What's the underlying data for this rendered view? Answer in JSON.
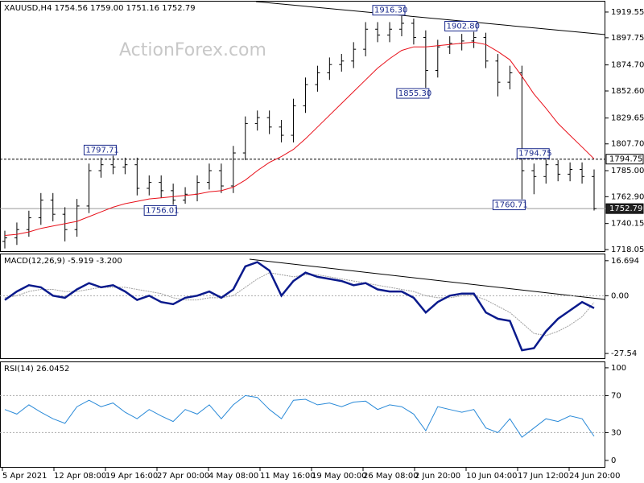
{
  "chart_data": {
    "type": "ohlc",
    "title": "XAUUSD,H4  1754.56 1759.00 1751.16 1752.79",
    "watermark": "ActionForex.com",
    "x_labels": [
      "5 Apr 2021",
      "12 Apr 08:00",
      "19 Apr 16:00",
      "27 Apr 00:00",
      "4 May 08:00",
      "11 May 16:00",
      "19 May 00:00",
      "26 May 08:00",
      "2 Jun 20:00",
      "10 Jun 04:00",
      "17 Jun 12:00",
      "24 Jun 20:00"
    ],
    "open": [
      1725,
      1728,
      1735,
      1745,
      1760,
      1748,
      1735,
      1755,
      1785,
      1790,
      1788,
      1790,
      1770,
      1775,
      1768,
      1760,
      1765,
      1775,
      1785,
      1772,
      1800,
      1825,
      1830,
      1822,
      1815,
      1840,
      1858,
      1868,
      1875,
      1878,
      1888,
      1905,
      1900,
      1905,
      1910,
      1898,
      1870,
      1890,
      1893,
      1895,
      1898,
      1878,
      1860,
      1868,
      1785,
      1780,
      1790,
      1782,
      1786,
      1780
    ],
    "high": [
      1734,
      1741,
      1751,
      1766,
      1766,
      1754,
      1761,
      1791,
      1796,
      1797.71,
      1796,
      1796,
      1781,
      1781,
      1774,
      1771,
      1781,
      1791,
      1791,
      1806,
      1831,
      1836,
      1836,
      1828,
      1846,
      1864,
      1874,
      1881,
      1884,
      1894,
      1911,
      1911,
      1911,
      1916.3,
      1914,
      1904,
      1896,
      1899,
      1901,
      1902.8,
      1902,
      1884,
      1874,
      1874,
      1791,
      1794.75,
      1794,
      1792,
      1792,
      1786
    ],
    "low": [
      1719,
      1722,
      1729,
      1739,
      1742,
      1725,
      1729,
      1749,
      1779,
      1782,
      1782,
      1764,
      1764,
      1762,
      1756.01,
      1757,
      1759,
      1769,
      1766,
      1766,
      1794,
      1819,
      1816,
      1809,
      1809,
      1834,
      1852,
      1862,
      1869,
      1872,
      1882,
      1894,
      1894,
      1899,
      1892,
      1855.3,
      1864,
      1884,
      1887,
      1889,
      1872,
      1848,
      1854,
      1760.71,
      1765,
      1774,
      1776,
      1776,
      1774,
      1751.16
    ],
    "close": [
      1728,
      1735,
      1745,
      1760,
      1748,
      1735,
      1755,
      1785,
      1790,
      1788,
      1790,
      1770,
      1775,
      1768,
      1760,
      1765,
      1775,
      1785,
      1772,
      1800,
      1825,
      1830,
      1822,
      1815,
      1840,
      1858,
      1868,
      1875,
      1878,
      1888,
      1905,
      1900,
      1905,
      1910,
      1898,
      1870,
      1890,
      1893,
      1895,
      1898,
      1878,
      1860,
      1868,
      1785,
      1780,
      1790,
      1782,
      1786,
      1780,
      1752.79
    ],
    "ma": {
      "color": "#e8101a",
      "values": [
        1730,
        1731,
        1733,
        1736,
        1738,
        1740,
        1742,
        1746,
        1750,
        1754,
        1757,
        1759,
        1761,
        1762,
        1763,
        1764,
        1765,
        1767,
        1768,
        1771,
        1777,
        1785,
        1792,
        1797,
        1803,
        1812,
        1822,
        1832,
        1842,
        1852,
        1862,
        1872,
        1880,
        1887,
        1890,
        1890,
        1891,
        1892,
        1893,
        1894,
        1892,
        1886,
        1879,
        1865,
        1850,
        1838,
        1825,
        1815,
        1805,
        1795
      ]
    },
    "ylim": [
      1716.7,
      1928.4
    ],
    "yticks": [
      1919.55,
      1897.75,
      {
        "value": 1874.7,
        "label": "1874.70"
      },
      {
        "value": 1852.6,
        "label": "1852.60"
      },
      1829.65,
      {
        "value": 1807.7,
        "label": "1807.70"
      },
      {
        "value": 1785,
        "label": "1785.00"
      },
      {
        "value": 1762.9,
        "label": "1762.90"
      },
      1740.15,
      1718.05
    ],
    "levels": [
      1794.75,
      1752.79
    ],
    "annotations": [
      {
        "value": 1797.71,
        "label": "1797.71"
      },
      {
        "value": 1756.01,
        "label": "1756.01"
      },
      {
        "value": 1916.3,
        "label": "1916.30"
      },
      {
        "value": 1855.3,
        "label": "1855.30"
      },
      {
        "value": 1902.8,
        "label": "1902.80"
      },
      {
        "value": 1760.71,
        "label": "1760.71"
      },
      {
        "value": 1794.75,
        "label": "1794.75"
      }
    ],
    "macd": {
      "title": "MACD(12,26,9) -5.919 -3.200",
      "ylim": [
        -29.8,
        19.7
      ],
      "yticks": [
        16.694,
        {
          "value": 0,
          "label": "0.00"
        },
        -27.54
      ],
      "macd": {
        "color": "#0a1a8c",
        "values": [
          -2,
          2,
          5,
          4,
          0,
          -1,
          3,
          6,
          4,
          5,
          2,
          -2,
          0,
          -3,
          -4,
          -1,
          0,
          2,
          -1,
          3,
          14,
          16,
          12,
          0,
          7,
          11,
          9,
          8,
          7,
          5,
          6,
          3,
          2,
          2,
          -1,
          -8,
          -3,
          0,
          1,
          1,
          -8,
          -11,
          -12,
          -26,
          -25,
          -17,
          -11,
          -7,
          -3,
          -5.919
        ]
      },
      "signal": {
        "color": "#a0a0a0",
        "values": [
          -1,
          0,
          2,
          3,
          3,
          2,
          2,
          3,
          4,
          4,
          4,
          3,
          2,
          1,
          -1,
          -2,
          -2,
          -1,
          -1,
          0,
          4,
          8,
          11,
          10,
          9,
          10,
          10,
          9,
          8,
          7,
          6,
          5,
          4,
          3,
          2,
          0,
          -1,
          -1,
          0,
          0,
          -2,
          -5,
          -8,
          -13,
          -18,
          -19,
          -17,
          -14,
          -10,
          -3.2
        ]
      }
    },
    "rsi": {
      "title": "RSI(14) 26.0452",
      "ylim": [
        -7,
        106
      ],
      "yticks": [
        100,
        70,
        30,
        0
      ],
      "levels": [
        70,
        30
      ],
      "color": "#2a8ad8",
      "values": [
        55,
        50,
        60,
        52,
        45,
        40,
        58,
        65,
        58,
        62,
        52,
        45,
        55,
        48,
        42,
        55,
        50,
        60,
        45,
        60,
        70,
        68,
        55,
        45,
        65,
        66,
        60,
        62,
        58,
        63,
        64,
        55,
        60,
        58,
        50,
        32,
        58,
        55,
        52,
        55,
        35,
        30,
        45,
        25,
        35,
        45,
        42,
        48,
        45,
        26.0452
      ]
    }
  }
}
